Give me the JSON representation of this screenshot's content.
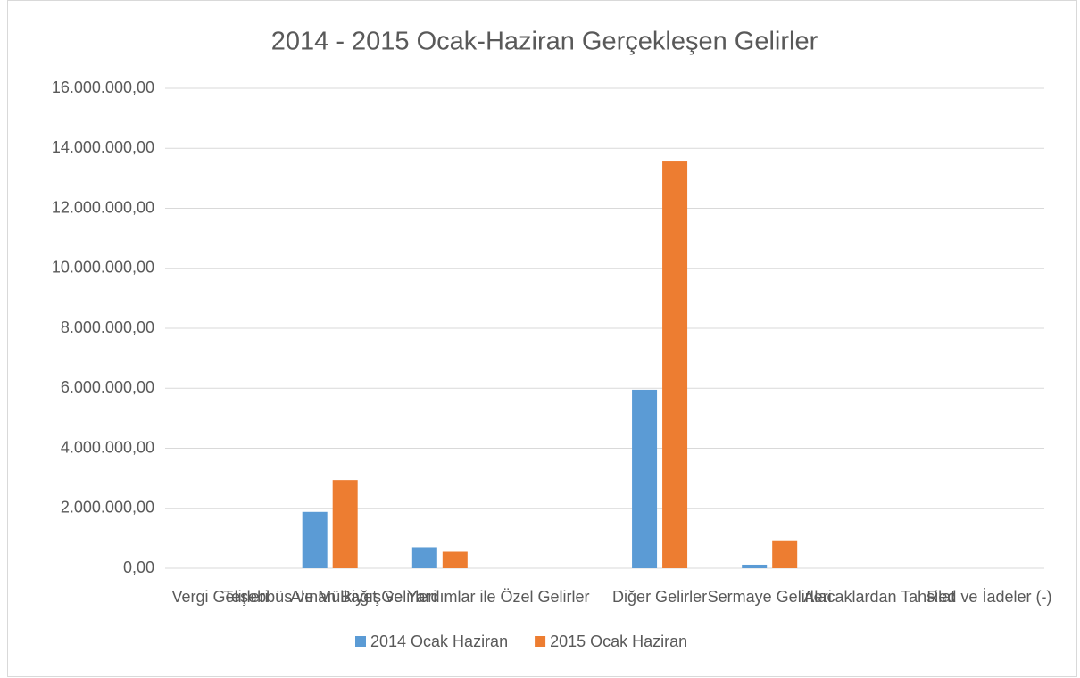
{
  "chart_data": {
    "type": "bar",
    "title": "2014 - 2015 Ocak-Haziran Gerçekleşen Gelirler",
    "categories": [
      "Vergi Gelirleri",
      "Teşebbüs ve Mülkiyet Gelirleri",
      "Alınan Bağış ve Yardımlar ile Özel Gelirler",
      null,
      "Diğer Gelirler",
      "Sermaye Gelirleri",
      "Alacaklardan Tahsilat",
      "Red ve İadeler (-)"
    ],
    "series": [
      {
        "name": "2014 Ocak Haziran",
        "color": "#5b9bd5",
        "values": [
          0,
          1880000,
          700000,
          null,
          5950000,
          120000,
          0,
          0
        ]
      },
      {
        "name": "2015 Ocak Haziran",
        "color": "#ed7d31",
        "values": [
          0,
          2940000,
          550000,
          null,
          13560000,
          930000,
          0,
          0
        ]
      }
    ],
    "ylim": [
      0,
      16000000
    ],
    "yticks": [
      {
        "value": 0,
        "label": "0,00"
      },
      {
        "value": 2000000,
        "label": "2.000.000,00"
      },
      {
        "value": 4000000,
        "label": "4.000.000,00"
      },
      {
        "value": 6000000,
        "label": "6.000.000,00"
      },
      {
        "value": 8000000,
        "label": "8.000.000,00"
      },
      {
        "value": 10000000,
        "label": "10.000.000,00"
      },
      {
        "value": 12000000,
        "label": "12.000.000,00"
      },
      {
        "value": 14000000,
        "label": "14.000.000,00"
      },
      {
        "value": 16000000,
        "label": "16.000.000,00"
      }
    ],
    "grid": true,
    "legend": "bottom"
  }
}
